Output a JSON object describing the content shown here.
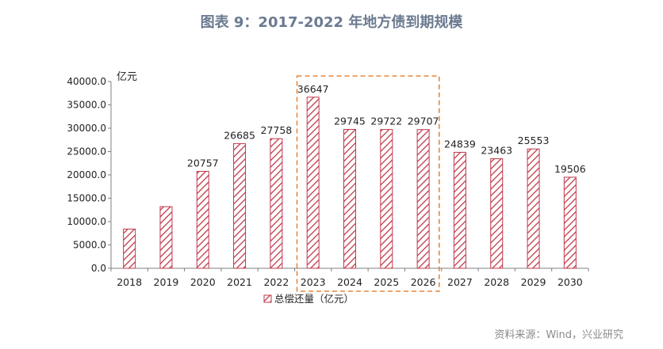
{
  "page": {
    "title": "图表 9：2017-2022 年地方债到期规模",
    "source": "资料来源：Wind，兴业研究"
  },
  "colors": {
    "bar_stroke": "#c0394a",
    "bar_hatch": "#c0394a",
    "highlight_box": "#e8853a",
    "axis": "#808080",
    "title": "#6b7a90"
  },
  "chart_data": {
    "type": "bar",
    "categories": [
      "2018",
      "2019",
      "2020",
      "2021",
      "2022",
      "2023",
      "2024",
      "2025",
      "2026",
      "2027",
      "2028",
      "2029",
      "2030"
    ],
    "series": [
      {
        "name": "总偿还量（亿元）",
        "values": [
          8400,
          13200,
          20757,
          26685,
          27758,
          36647,
          29745,
          29722,
          29707,
          24839,
          23463,
          25553,
          19506
        ],
        "labels": [
          "",
          "",
          "20757",
          "26685",
          "27758",
          "36647",
          "29745",
          "29722",
          "29707",
          "24839",
          "23463",
          "25553",
          "19506"
        ]
      }
    ],
    "ylabel": "亿元",
    "ylim": [
      0,
      40000
    ],
    "yticks": [
      0,
      5000,
      10000,
      15000,
      20000,
      25000,
      30000,
      35000,
      40000
    ],
    "ytick_labels": [
      "0.0",
      "5000.0",
      "10000.0",
      "15000.0",
      "20000.0",
      "25000.0",
      "30000.0",
      "35000.0",
      "40000.0"
    ],
    "legend": "总偿还量（亿元）",
    "legend_position": "bottom",
    "grid": false,
    "highlight_categories": [
      "2023",
      "2026"
    ]
  }
}
